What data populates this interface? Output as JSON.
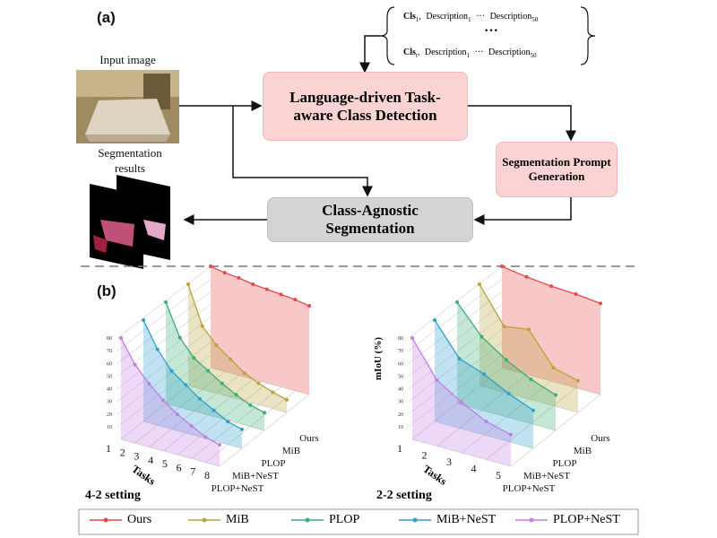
{
  "figure": {
    "panel_a": "(a)",
    "panel_b": "(b)",
    "input_label": "Input image",
    "results_label": "Segmentation results",
    "results_ellipsis": "· · ·",
    "detection_box": "Language-driven Task-aware Class Detection",
    "prompt_box": "Segmentation Prompt Generation",
    "segmentation_box": "Class-Agnostic Segmentation",
    "description_set": {
      "rows": [
        {
          "cls": "Cls",
          "cls_sub": "1",
          "separator": ",",
          "desc": "Description",
          "desc_sub": "1",
          "ellipsis": "···",
          "desc_last": "Description",
          "desc_last_sub": "50"
        },
        {
          "cls": "Cls",
          "cls_sub": "t",
          "separator": ",",
          "desc": "Description",
          "desc_sub": "1",
          "ellipsis": "···",
          "desc_last": "Description",
          "desc_last_sub": "50"
        }
      ],
      "middle": "···"
    }
  },
  "chart_data": [
    {
      "type": "line3d",
      "title": "4-2 setting",
      "xlabel": "Tasks",
      "categories": [
        1,
        2,
        3,
        4,
        5,
        6,
        7,
        8
      ],
      "ylim": [
        0,
        85
      ],
      "yticks": [
        10,
        20,
        30,
        40,
        50,
        60,
        70,
        80
      ],
      "series": [
        {
          "name": "Ours",
          "color": "#e8474a",
          "values": [
            80,
            78,
            77,
            75,
            74,
            73,
            72,
            70
          ]
        },
        {
          "name": "MiB",
          "color": "#b9a33a",
          "values": [
            80,
            50,
            38,
            30,
            22,
            17,
            13,
            10
          ]
        },
        {
          "name": "PLOP",
          "color": "#3cae78",
          "values": [
            80,
            55,
            42,
            35,
            28,
            22,
            17,
            14
          ]
        },
        {
          "name": "MiB+NeST",
          "color": "#2f9fcf",
          "values": [
            80,
            60,
            46,
            38,
            30,
            24,
            18,
            15
          ]
        },
        {
          "name": "PLOP+NeST",
          "color": "#c27fe3",
          "values": [
            80,
            62,
            50,
            40,
            32,
            26,
            20,
            17
          ]
        }
      ]
    },
    {
      "type": "line3d",
      "title": "2-2 setting",
      "xlabel": "Tasks",
      "ylabel": "mIoU (%)",
      "categories": [
        1,
        2,
        3,
        4,
        5
      ],
      "ylim": [
        0,
        85
      ],
      "yticks": [
        10,
        20,
        30,
        40,
        50,
        60,
        70,
        80
      ],
      "series": [
        {
          "name": "Ours",
          "color": "#e8474a",
          "values": [
            80,
            77,
            75,
            74,
            72
          ]
        },
        {
          "name": "MiB",
          "color": "#b9a33a",
          "values": [
            80,
            52,
            55,
            30,
            25
          ]
        },
        {
          "name": "PLOP",
          "color": "#3cae78",
          "values": [
            80,
            58,
            45,
            35,
            28
          ]
        },
        {
          "name": "MiB+NeST",
          "color": "#2f9fcf",
          "values": [
            80,
            55,
            48,
            38,
            30
          ]
        },
        {
          "name": "PLOP+NeST",
          "color": "#c27fe3",
          "values": [
            80,
            52,
            40,
            30,
            25
          ]
        }
      ]
    }
  ]
}
